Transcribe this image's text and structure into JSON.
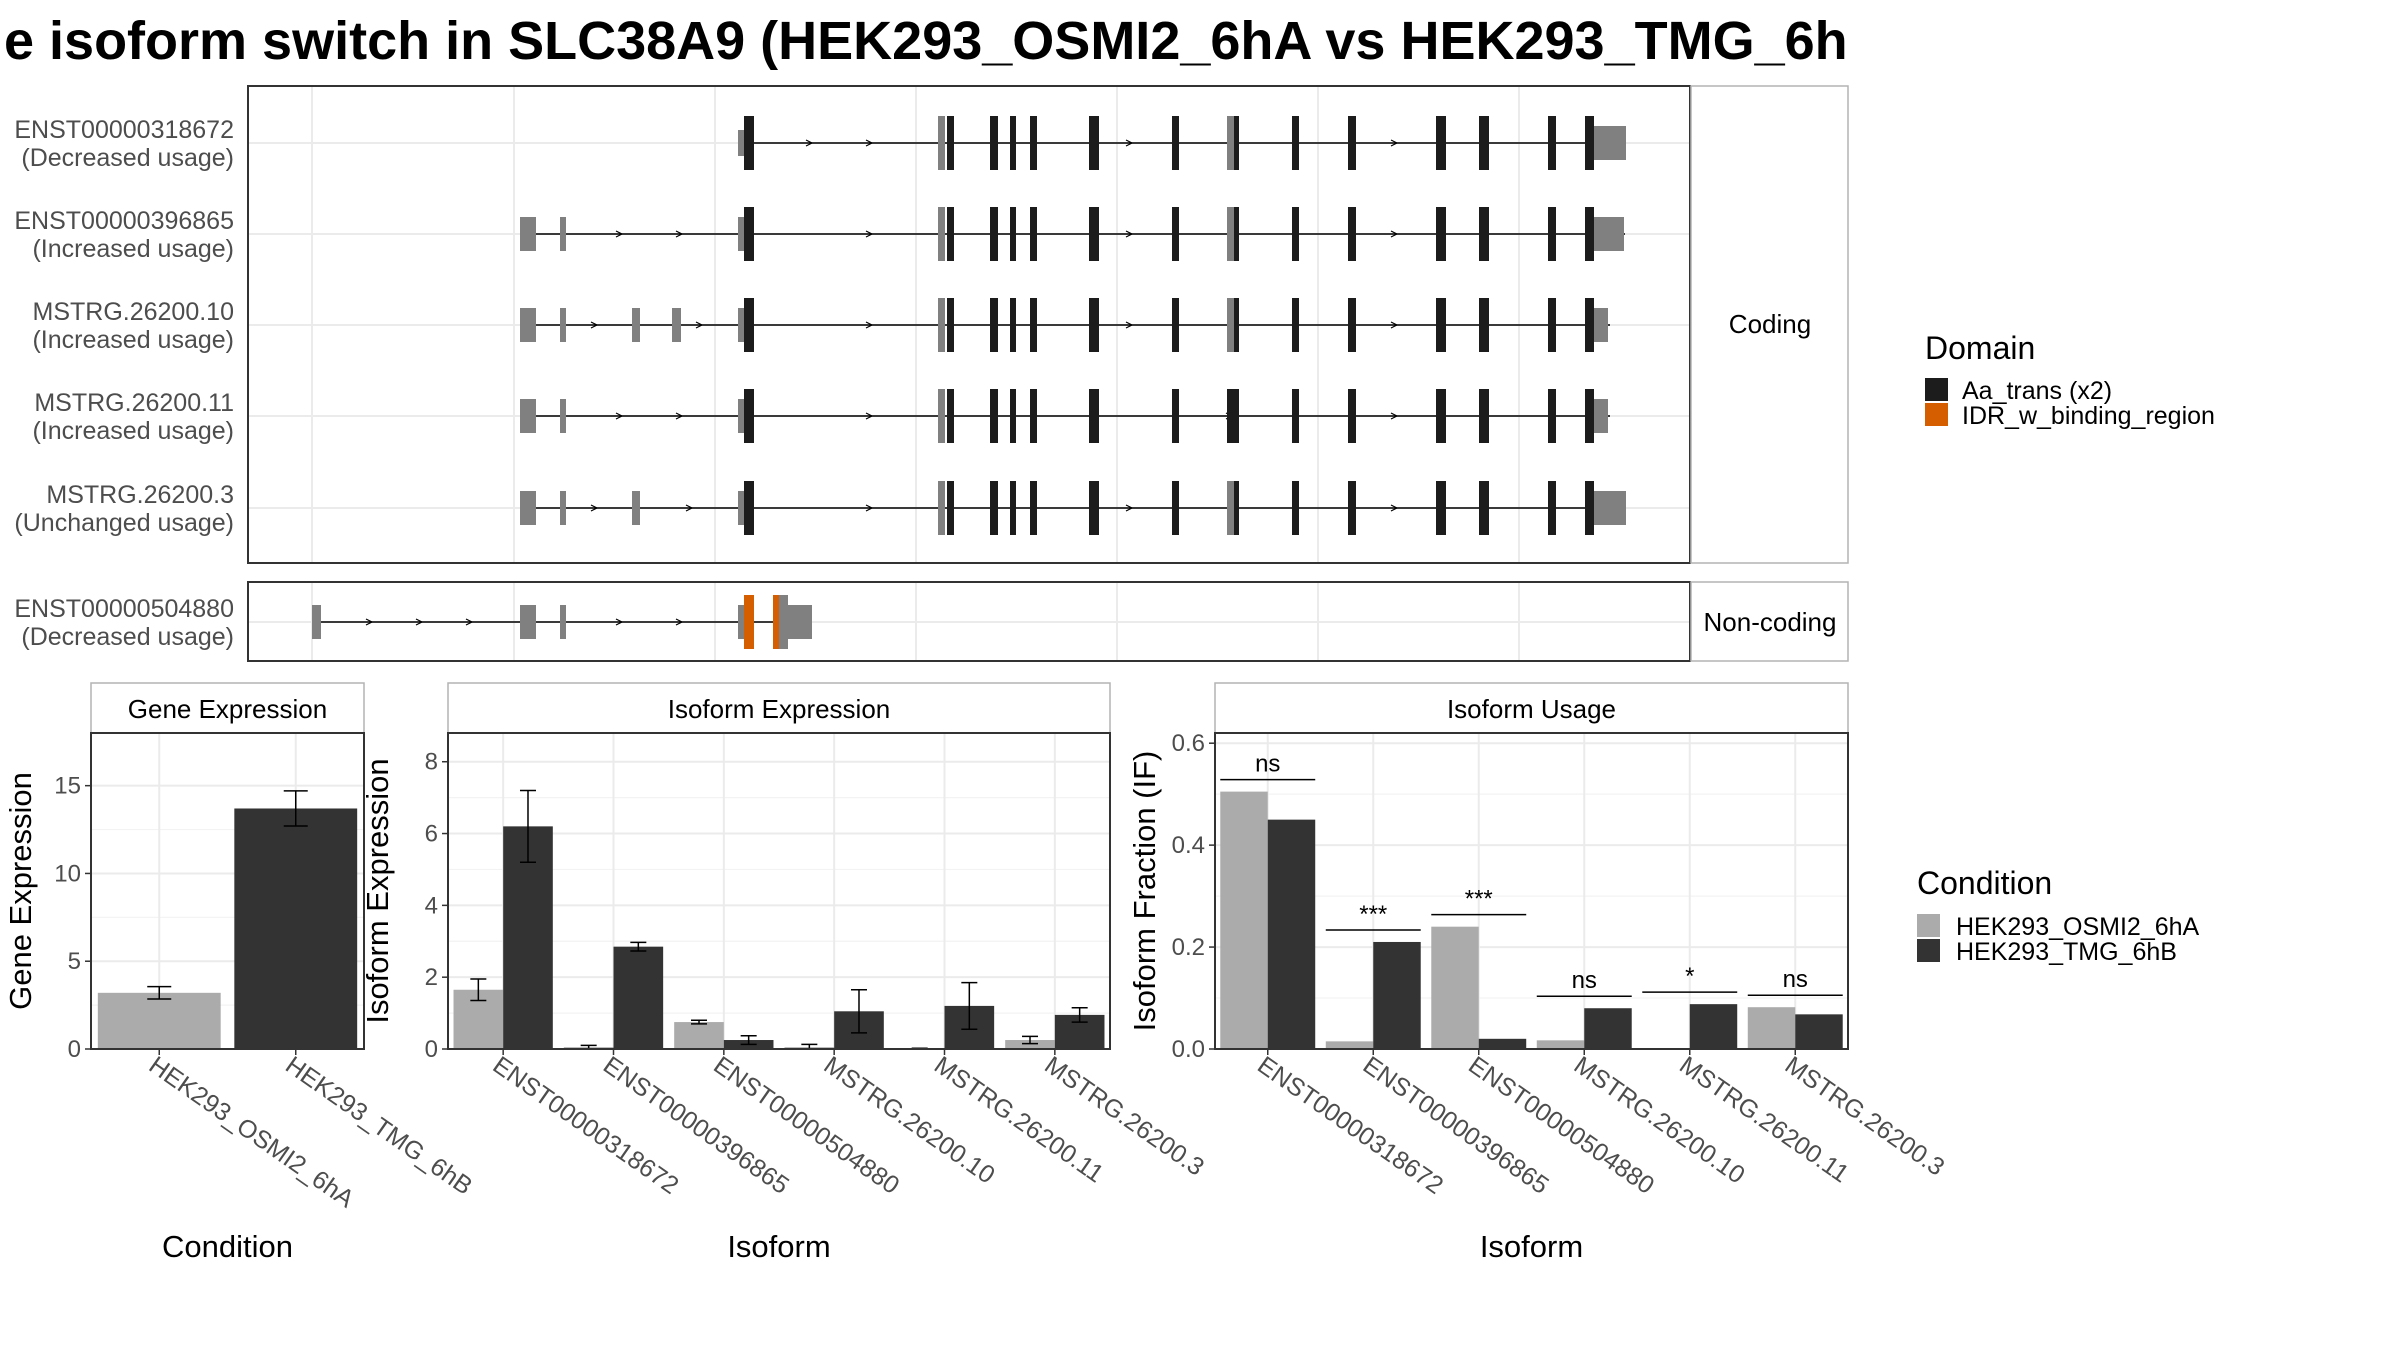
{
  "title": "e isoform switch in SLC38A9 (HEK293_OSMI2_6hA vs HEK293_TMG_6h",
  "colors": {
    "cond_a": "#ababab",
    "cond_b": "#333333",
    "domain_aa": "#1c1c1c",
    "domain_idr": "#d55e00",
    "exon": "#808080"
  },
  "legends": {
    "domain_title": "Domain",
    "domain_items": [
      "Aa_trans (x2)",
      "IDR_w_binding_region"
    ],
    "condition_title": "Condition",
    "condition_items": [
      "HEK293_OSMI2_6hA",
      "HEK293_TMG_6hB"
    ]
  },
  "structure": {
    "coding_label": "Coding",
    "noncoding_label": "Non-coding",
    "coding_transcripts": [
      {
        "id": "ENST00000318672",
        "usage": "(Decreased usage)"
      },
      {
        "id": "ENST00000396865",
        "usage": "(Increased usage)"
      },
      {
        "id": "MSTRG.26200.10",
        "usage": "(Increased usage)"
      },
      {
        "id": "MSTRG.26200.11",
        "usage": "(Increased usage)"
      },
      {
        "id": "MSTRG.26200.3",
        "usage": "(Unchanged usage)"
      }
    ],
    "noncoding_transcripts": [
      {
        "id": "ENST00000504880",
        "usage": "(Decreased usage)"
      }
    ]
  },
  "chart_data": [
    {
      "type": "bar",
      "title": "Gene Expression",
      "xlabel": "Condition",
      "ylabel": "Gene Expression",
      "categories": [
        "HEK293_OSMI2_6hA",
        "HEK293_TMG_6hB"
      ],
      "values": [
        3.2,
        13.7
      ],
      "errors": [
        0.35,
        1.0
      ],
      "ylim": [
        0,
        18
      ],
      "yticks": [
        0,
        5,
        10,
        15
      ]
    },
    {
      "type": "bar",
      "title": "Isoform Expression",
      "xlabel": "Isoform",
      "ylabel": "Isoform Expression",
      "categories": [
        "ENST00000318672",
        "ENST00000396865",
        "ENST00000504880",
        "MSTRG.26200.10",
        "MSTRG.26200.11",
        "MSTRG.26200.3"
      ],
      "series": [
        {
          "name": "HEK293_OSMI2_6hA",
          "values": [
            1.65,
            0.05,
            0.75,
            0.05,
            0.0,
            0.25
          ],
          "errors": [
            0.3,
            0.05,
            0.05,
            0.08,
            0.02,
            0.1
          ]
        },
        {
          "name": "HEK293_TMG_6hB",
          "values": [
            6.2,
            2.85,
            0.25,
            1.05,
            1.2,
            0.95
          ],
          "errors": [
            1.0,
            0.12,
            0.12,
            0.6,
            0.65,
            0.2
          ]
        }
      ],
      "ylim": [
        0,
        8.8
      ],
      "yticks": [
        0,
        2,
        4,
        6,
        8
      ]
    },
    {
      "type": "bar",
      "title": "Isoform Usage",
      "xlabel": "Isoform",
      "ylabel": "Isoform Fraction (IF)",
      "categories": [
        "ENST00000318672",
        "ENST00000396865",
        "ENST00000504880",
        "MSTRG.26200.10",
        "MSTRG.26200.11",
        "MSTRG.26200.3"
      ],
      "series": [
        {
          "name": "HEK293_OSMI2_6hA",
          "values": [
            0.505,
            0.015,
            0.24,
            0.017,
            0.0,
            0.082
          ]
        },
        {
          "name": "HEK293_TMG_6hB",
          "values": [
            0.45,
            0.21,
            0.02,
            0.08,
            0.088,
            0.068
          ]
        }
      ],
      "significance": [
        "ns",
        "***",
        "***",
        "ns",
        "*",
        "ns"
      ],
      "ylim": [
        0,
        0.62
      ],
      "yticks": [
        0.0,
        0.2,
        0.4,
        0.6
      ]
    }
  ]
}
